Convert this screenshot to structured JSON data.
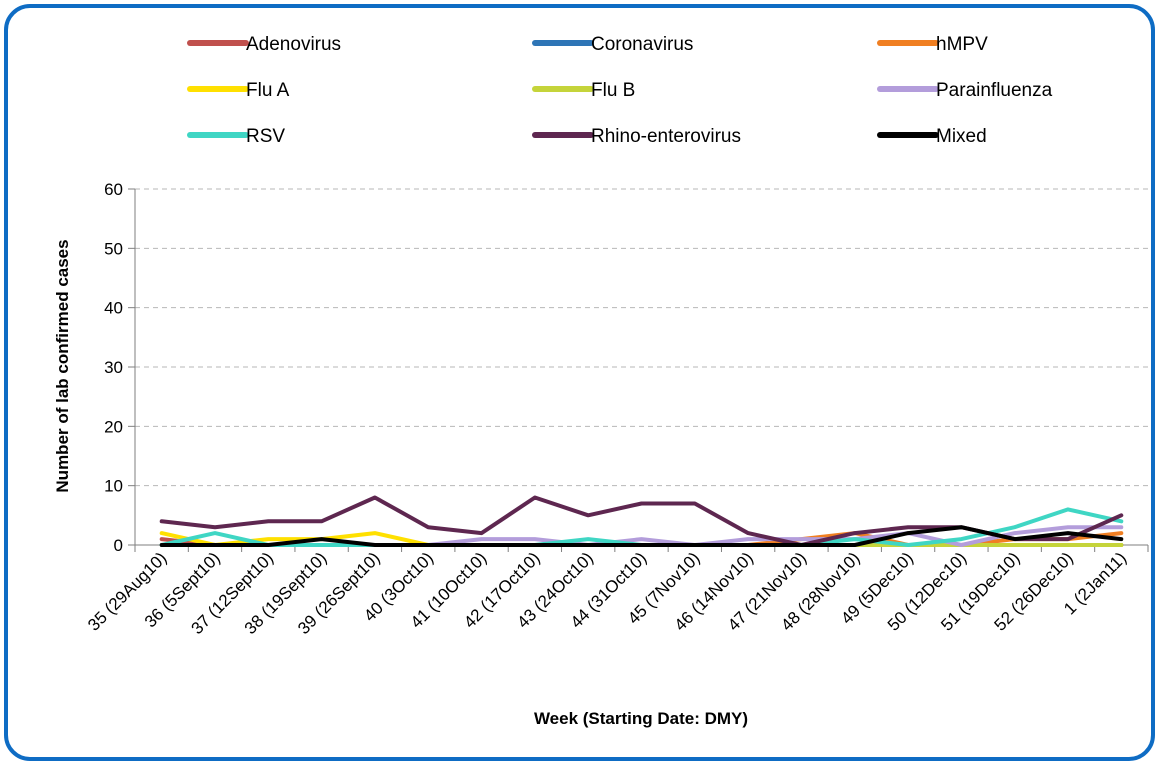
{
  "chart_data": {
    "type": "line",
    "title": "",
    "xlabel": "Week (Starting Date: DMY)",
    "ylabel": "Number of lab confirmed cases",
    "ylim": [
      0,
      60
    ],
    "yticks": [
      0,
      10,
      20,
      30,
      40,
      50,
      60
    ],
    "grid": true,
    "legend_position": "top",
    "categories": [
      "35 (29Aug10)",
      "36 (5Sept10)",
      "37 (12Sept10)",
      "38 (19Sept10)",
      "39 (26Sept10)",
      "40 (3Oct10)",
      "41 (10Oct10)",
      "42 (17Oct10)",
      "43 (24Oct10)",
      "44 (31Oct10)",
      "45 (7Nov10)",
      "46 (14Nov10)",
      "47 (21Nov10)",
      "48 (28Nov10)",
      "49 (5Dec10)",
      "50 (12Dec10)",
      "51 (19Dec10)",
      "52 (26Dec10)",
      "1 (2Jan11)"
    ],
    "series": [
      {
        "name": "Adenovirus",
        "color": "#c0504d",
        "values": [
          1,
          0,
          0,
          0,
          0,
          0,
          0,
          0,
          0,
          0,
          0,
          0,
          0,
          0,
          0,
          0,
          0,
          0,
          0
        ]
      },
      {
        "name": "Coronavirus",
        "color": "#2e75b6",
        "values": [
          0,
          0,
          0,
          0,
          0,
          0,
          0,
          0,
          0,
          0,
          0,
          0,
          0,
          0,
          0,
          0,
          0,
          0,
          0
        ]
      },
      {
        "name": "hMPV",
        "color": "#f07f22",
        "values": [
          0,
          0,
          0,
          0,
          0,
          0,
          0,
          0,
          0,
          0,
          0,
          0,
          1,
          2,
          0,
          0,
          1,
          1,
          2
        ]
      },
      {
        "name": "Flu A",
        "color": "#ffe000",
        "values": [
          2,
          0,
          1,
          1,
          2,
          0,
          0,
          0,
          0,
          0,
          0,
          0,
          0,
          0,
          0,
          0,
          0,
          0,
          0
        ]
      },
      {
        "name": "Flu B",
        "color": "#c5d43a",
        "values": [
          0,
          0,
          0,
          0,
          0,
          0,
          0,
          0,
          0,
          0,
          0,
          0,
          0,
          0,
          0,
          0,
          0,
          0,
          0
        ]
      },
      {
        "name": "Parainfluenza",
        "color": "#b39ddb",
        "values": [
          0,
          0,
          0,
          0,
          0,
          0,
          1,
          1,
          0,
          1,
          0,
          1,
          1,
          1,
          2,
          0,
          2,
          3,
          3
        ]
      },
      {
        "name": "RSV",
        "color": "#3fd6c4",
        "values": [
          0,
          2,
          0,
          0,
          0,
          0,
          0,
          0,
          1,
          0,
          0,
          0,
          0,
          1,
          0,
          1,
          3,
          6,
          4
        ]
      },
      {
        "name": "Rhino-enterovirus",
        "color": "#5e2750",
        "values": [
          4,
          3,
          4,
          4,
          8,
          3,
          2,
          8,
          5,
          7,
          7,
          2,
          0,
          2,
          3,
          3,
          1,
          1,
          5
        ]
      },
      {
        "name": "Mixed",
        "color": "#000000",
        "values": [
          0,
          0,
          0,
          1,
          0,
          0,
          0,
          0,
          0,
          0,
          0,
          0,
          0,
          0,
          2,
          3,
          1,
          2,
          1
        ]
      }
    ]
  }
}
